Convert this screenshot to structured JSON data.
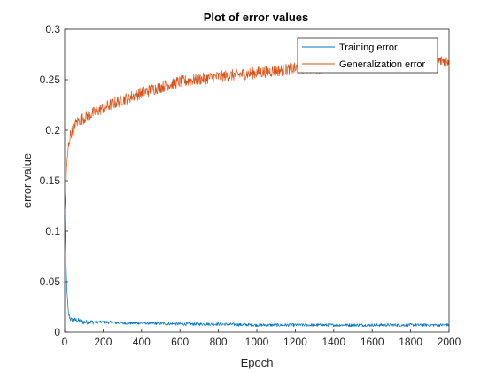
{
  "chart_data": {
    "type": "line",
    "title": "Plot of error values",
    "xlabel": "Epoch",
    "ylabel": "error value",
    "xlim": [
      0,
      2000
    ],
    "ylim": [
      0,
      0.3
    ],
    "xticks": [
      "0",
      "200",
      "400",
      "600",
      "800",
      "1000",
      "1200",
      "1400",
      "1600",
      "1800",
      "2000"
    ],
    "yticks": [
      "0",
      "0.05",
      "0.1",
      "0.15",
      "0.2",
      "0.25",
      "0.3"
    ],
    "grid": false,
    "legend_position": "top-right",
    "series": [
      {
        "name": "Training error",
        "color": "#0072BD",
        "x": [
          0,
          5,
          10,
          15,
          20,
          30,
          40,
          60,
          80,
          100,
          150,
          200,
          300,
          400,
          600,
          800,
          1000,
          1200,
          1400,
          1600,
          1800,
          2000
        ],
        "y": [
          0.115,
          0.085,
          0.05,
          0.03,
          0.018,
          0.013,
          0.012,
          0.012,
          0.011,
          0.01,
          0.01,
          0.01,
          0.009,
          0.009,
          0.008,
          0.008,
          0.007,
          0.007,
          0.007,
          0.007,
          0.007,
          0.007
        ]
      },
      {
        "name": "Generalization error",
        "color": "#D95319",
        "x": [
          0,
          5,
          10,
          20,
          30,
          50,
          75,
          100,
          150,
          200,
          300,
          400,
          500,
          600,
          800,
          1000,
          1200,
          1400,
          1600,
          1800,
          2000
        ],
        "y": [
          0.118,
          0.135,
          0.16,
          0.185,
          0.195,
          0.205,
          0.21,
          0.212,
          0.217,
          0.222,
          0.23,
          0.237,
          0.243,
          0.248,
          0.253,
          0.257,
          0.261,
          0.263,
          0.265,
          0.267,
          0.269
        ]
      }
    ]
  }
}
